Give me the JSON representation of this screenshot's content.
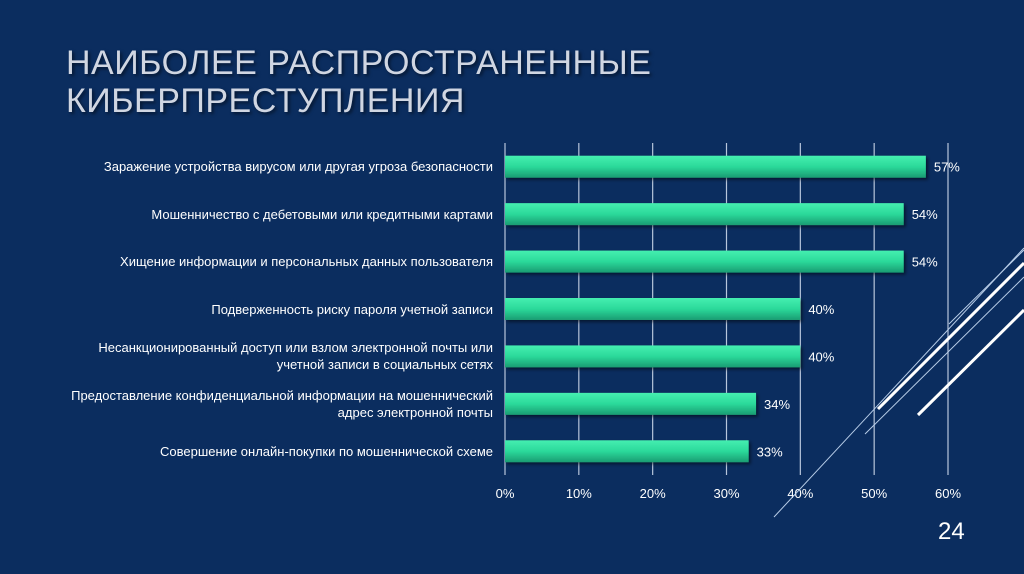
{
  "slide": {
    "title": "НАИБОЛЕЕ РАСПРОСТРАНЕННЫЕ\nКИБЕРПРЕСТУПЛЕНИЯ",
    "page_number": "24"
  },
  "colors": {
    "background": "#0b2d5f",
    "bar": "#2bd99a",
    "grid": "#b8c6dc",
    "text": "#ffffff"
  },
  "chart_data": {
    "type": "bar",
    "orientation": "horizontal",
    "title": "",
    "categories": [
      "Заражение устройства вирусом или другая угроза безопасности",
      "Мошенничество с дебетовыми или кредитными картами",
      "Хищение информации и персональных данных пользователя",
      "Подверженность риску пароля учетной записи",
      "Несанкционированный доступ или взлом электронной почты или учетной записи в социальных сетях",
      "Предоставление конфиденциальной информации на мошеннический адрес электронной почты",
      "Совершение онлайн-покупки по мошеннической схеме"
    ],
    "values": [
      57,
      54,
      54,
      40,
      40,
      34,
      33
    ],
    "data_labels": [
      "57%",
      "54%",
      "54%",
      "40%",
      "40%",
      "34%",
      "33%"
    ],
    "xlim": [
      0,
      60
    ],
    "x_ticks": [
      "0%",
      "10%",
      "20%",
      "30%",
      "40%",
      "50%",
      "60%"
    ],
    "grid": "vertical",
    "legend": "none"
  }
}
